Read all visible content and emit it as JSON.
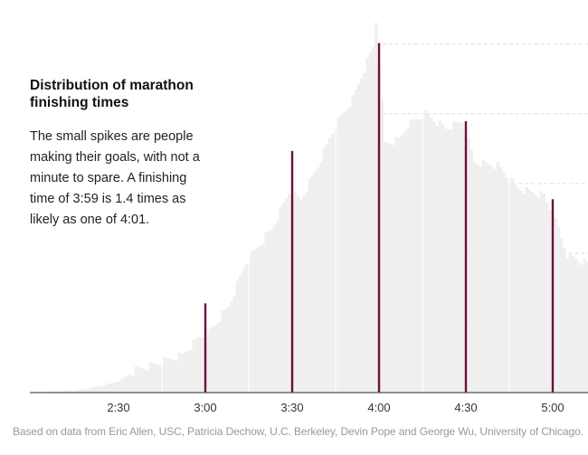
{
  "chart_data": {
    "type": "bar",
    "title": "Distribution of marathon finishing times",
    "description": "The small spikes are people making their goals, with not a minute to spare. A finishing time of 3:59 is 1.4 times as likely as one of 4:01.",
    "xlabel": "",
    "ylabel": "",
    "x_range": [
      "2:00",
      "5:14"
    ],
    "x_ticks": [
      "2:30",
      "3:00",
      "3:30",
      "4:00",
      "4:30",
      "5:00"
    ],
    "y_scale": "relative (peak = 100)",
    "grid": true,
    "bar_color": "#efefef",
    "spike_color": "#6b0f3e",
    "distribution": [
      {
        "x": "2:00",
        "y": 0
      },
      {
        "x": "2:15",
        "y": 0.5
      },
      {
        "x": "2:25",
        "y": 2
      },
      {
        "x": "2:30",
        "y": 3
      },
      {
        "x": "2:36",
        "y": 6
      },
      {
        "x": "2:52",
        "y": 10
      },
      {
        "x": "2:58",
        "y": 15
      },
      {
        "x": "3:01",
        "y": 16
      },
      {
        "x": "3:08",
        "y": 23
      },
      {
        "x": "3:14",
        "y": 35
      },
      {
        "x": "3:23",
        "y": 44
      },
      {
        "x": "3:29",
        "y": 54
      },
      {
        "x": "3:33",
        "y": 52
      },
      {
        "x": "3:39",
        "y": 61
      },
      {
        "x": "3:45",
        "y": 72
      },
      {
        "x": "3:51",
        "y": 79
      },
      {
        "x": "3:58",
        "y": 93
      },
      {
        "x": "3:59",
        "y": 100
      },
      {
        "x": "4:02",
        "y": 67
      },
      {
        "x": "4:07",
        "y": 68
      },
      {
        "x": "4:10",
        "y": 72
      },
      {
        "x": "4:16",
        "y": 75
      },
      {
        "x": "4:23",
        "y": 71
      },
      {
        "x": "4:29",
        "y": 73
      },
      {
        "x": "4:33",
        "y": 62
      },
      {
        "x": "4:41",
        "y": 61
      },
      {
        "x": "4:48",
        "y": 55
      },
      {
        "x": "4:57",
        "y": 53
      },
      {
        "x": "5:02",
        "y": 44
      },
      {
        "x": "5:05",
        "y": 37
      },
      {
        "x": "5:14",
        "y": 34
      }
    ],
    "spikes": [
      {
        "x": "3:00",
        "y": 24
      },
      {
        "x": "3:30",
        "y": 65
      },
      {
        "x": "4:00",
        "y": 94
      },
      {
        "x": "4:30",
        "y": 73
      },
      {
        "x": "5:00",
        "y": 52
      }
    ]
  },
  "source": "Based on data from Eric Allen, USC, Patricia Dechow, U.C. Berkeley, Devin Pope and George Wu, University of Chicago."
}
